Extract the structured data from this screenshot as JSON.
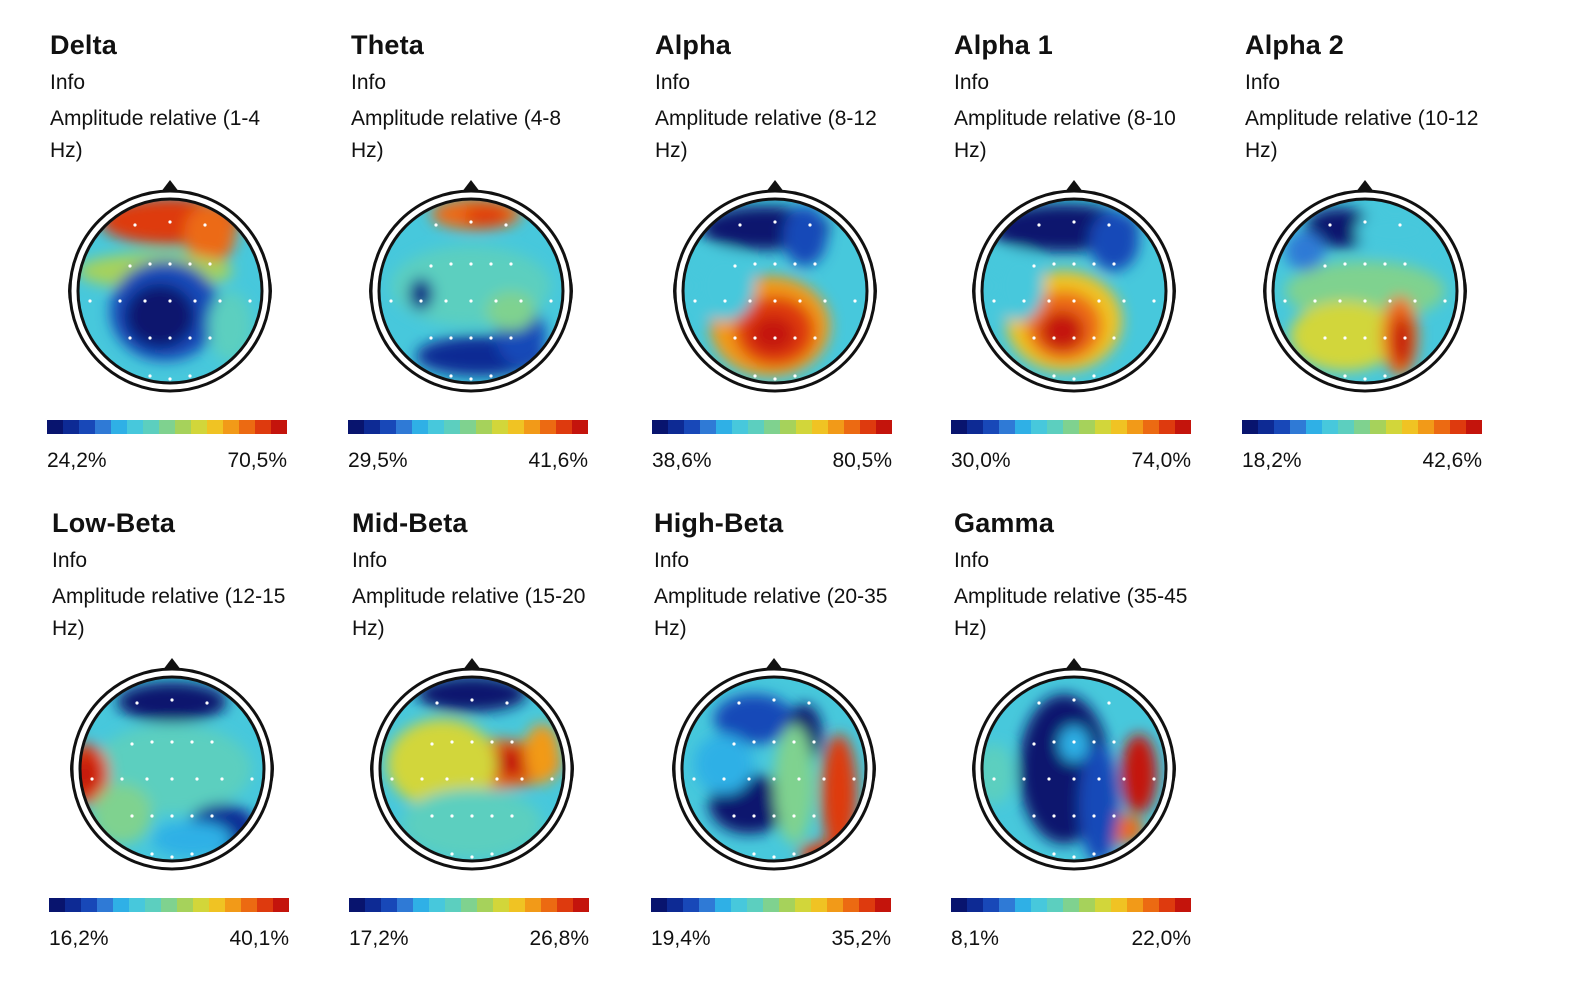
{
  "colormap": [
    "#08146e",
    "#0d2a94",
    "#1848b8",
    "#2f7ad6",
    "#2fb0e6",
    "#47c8dc",
    "#5ccfbf",
    "#7fd28f",
    "#a6d25b",
    "#d2d63a",
    "#f0c323",
    "#f29a18",
    "#ec6a12",
    "#de3a0e",
    "#c4140c"
  ],
  "chart_data": [
    {
      "type": "heatmap",
      "title": "Delta",
      "info": "Info",
      "metric": "Amplitude relative (1-4 Hz)",
      "min_label": "24,2%",
      "max_label": "70,5%",
      "range": [
        24.2,
        70.5
      ]
    },
    {
      "type": "heatmap",
      "title": "Theta",
      "info": "Info",
      "metric": "Amplitude relative (4-8 Hz)",
      "min_label": "29,5%",
      "max_label": "41,6%",
      "range": [
        29.5,
        41.6
      ]
    },
    {
      "type": "heatmap",
      "title": "Alpha",
      "info": "Info",
      "metric": "Amplitude relative (8-12 Hz)",
      "min_label": "38,6%",
      "max_label": "80,5%",
      "range": [
        38.6,
        80.5
      ]
    },
    {
      "type": "heatmap",
      "title": "Alpha 1",
      "info": "Info",
      "metric": "Amplitude relative (8-10 Hz)",
      "min_label": "30,0%",
      "max_label": "74,0%",
      "range": [
        30.0,
        74.0
      ]
    },
    {
      "type": "heatmap",
      "title": "Alpha 2",
      "info": "Info",
      "metric": "Amplitude relative (10-12 Hz)",
      "min_label": "18,2%",
      "max_label": "42,6%",
      "range": [
        18.2,
        42.6
      ]
    },
    {
      "type": "heatmap",
      "title": "Low-Beta",
      "info": "Info",
      "metric": "Amplitude relative (12-15 Hz)",
      "min_label": "16,2%",
      "max_label": "40,1%",
      "range": [
        16.2,
        40.1
      ]
    },
    {
      "type": "heatmap",
      "title": "Mid-Beta",
      "info": "Info",
      "metric": "Amplitude relative (15-20 Hz)",
      "min_label": "17,2%",
      "max_label": "26,8%",
      "range": [
        17.2,
        26.8
      ]
    },
    {
      "type": "heatmap",
      "title": "High-Beta",
      "info": "Info",
      "metric": "Amplitude relative (20-35 Hz)",
      "min_label": "19,4%",
      "max_label": "35,2%",
      "range": [
        19.4,
        35.2
      ]
    },
    {
      "type": "heatmap",
      "title": "Gamma",
      "info": "Info",
      "metric": "Amplitude relative (35-45 Hz)",
      "min_label": "8,1%",
      "max_label": "22,0%",
      "range": [
        8.1,
        22.0
      ]
    }
  ]
}
